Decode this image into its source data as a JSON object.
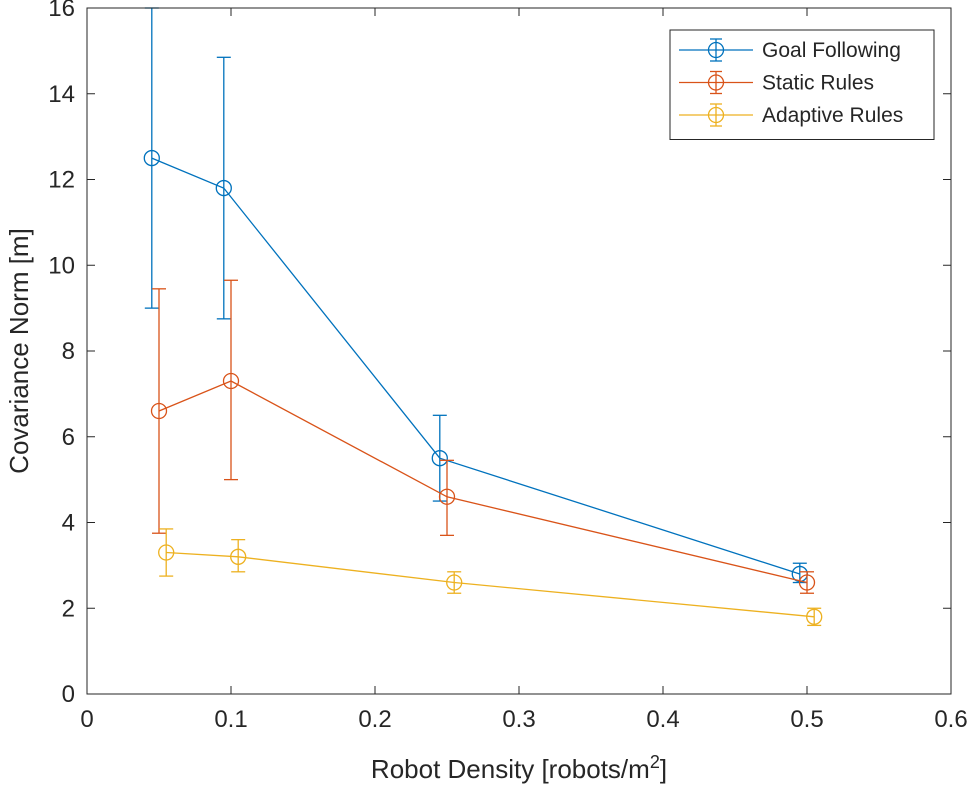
{
  "chart_data": {
    "type": "line",
    "title": "",
    "xlabel": "Robot Density [robots/m",
    "xlabel_superscript": "2",
    "xlabel_suffix": "]",
    "ylabel": "Covariance Norm [m]",
    "xlim": [
      0,
      0.6
    ],
    "ylim": [
      0,
      16
    ],
    "xticks": [
      0,
      0.1,
      0.2,
      0.3,
      0.4,
      0.5,
      0.6
    ],
    "xtick_labels": [
      "0",
      "0.1",
      "0.2",
      "0.3",
      "0.4",
      "0.5",
      "0.6"
    ],
    "yticks": [
      0,
      2,
      4,
      6,
      8,
      10,
      12,
      14,
      16
    ],
    "ytick_labels": [
      "0",
      "2",
      "4",
      "6",
      "8",
      "10",
      "12",
      "14",
      "16"
    ],
    "grid": false,
    "legend_position": "top-right",
    "marker": "circle",
    "error_bars": true,
    "series": [
      {
        "name": "Goal Following",
        "color": "#0072BD",
        "points": [
          {
            "x": 0.045,
            "y": 12.5,
            "lo": 9.0,
            "hi": 16.0
          },
          {
            "x": 0.095,
            "y": 11.8,
            "lo": 8.75,
            "hi": 14.85
          },
          {
            "x": 0.245,
            "y": 5.5,
            "lo": 4.5,
            "hi": 6.5
          },
          {
            "x": 0.495,
            "y": 2.8,
            "lo": 2.6,
            "hi": 3.05
          }
        ]
      },
      {
        "name": "Static Rules",
        "color": "#D95319",
        "points": [
          {
            "x": 0.05,
            "y": 6.6,
            "lo": 3.75,
            "hi": 9.45
          },
          {
            "x": 0.1,
            "y": 7.3,
            "lo": 5.0,
            "hi": 9.65
          },
          {
            "x": 0.25,
            "y": 4.6,
            "lo": 3.7,
            "hi": 5.45
          },
          {
            "x": 0.5,
            "y": 2.6,
            "lo": 2.35,
            "hi": 2.85
          }
        ]
      },
      {
        "name": "Adaptive Rules",
        "color": "#EDB120",
        "points": [
          {
            "x": 0.055,
            "y": 3.3,
            "lo": 2.75,
            "hi": 3.85
          },
          {
            "x": 0.105,
            "y": 3.2,
            "lo": 2.85,
            "hi": 3.6
          },
          {
            "x": 0.255,
            "y": 2.6,
            "lo": 2.35,
            "hi": 2.85
          },
          {
            "x": 0.505,
            "y": 1.8,
            "lo": 1.6,
            "hi": 2.0
          }
        ]
      }
    ]
  }
}
